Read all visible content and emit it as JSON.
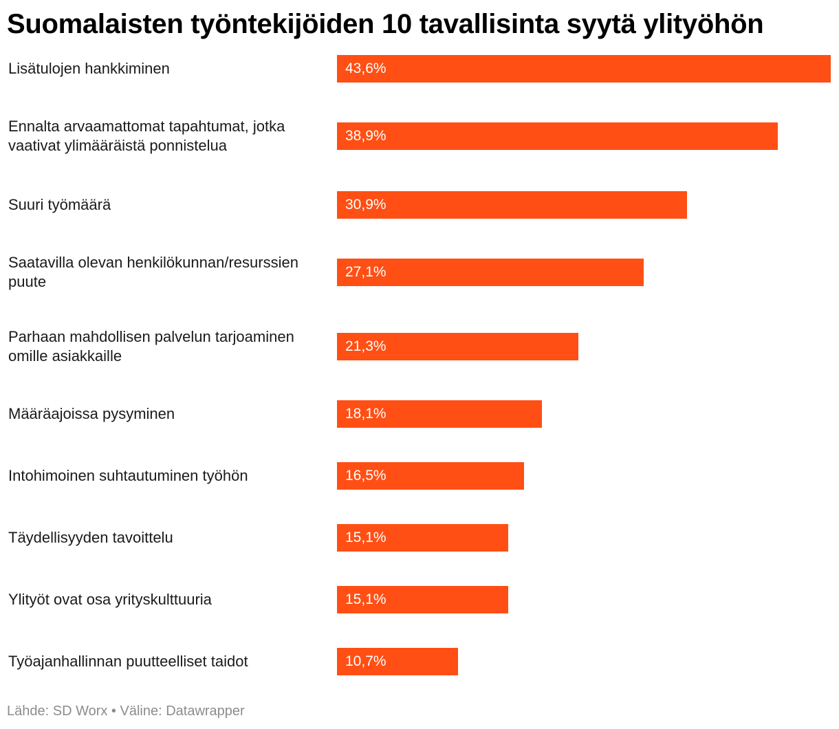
{
  "chart_data": {
    "type": "bar",
    "orientation": "horizontal",
    "title": "Suomalaisten työntekijöiden 10 tavallisinta syytä ylityöhön",
    "categories": [
      "Lisätulojen hankkiminen",
      "Ennalta arvaamattomat tapahtumat, jotka vaativat ylimääräistä ponnistelua",
      "Suuri työmäärä",
      "Saatavilla olevan henkilökunnan/resurssien puute",
      "Parhaan mahdollisen palvelun tarjoaminen omille asiakkaille",
      "Määräajoissa pysyminen",
      "Intohimoinen suhtautuminen työhön",
      "Täydellisyyden tavoittelu",
      "Ylityöt ovat osa yrityskulttuuria",
      "Työajanhallinnan puutteelliset taidot"
    ],
    "values": [
      43.6,
      38.9,
      30.9,
      27.1,
      21.3,
      18.1,
      16.5,
      15.1,
      15.1,
      10.7
    ],
    "value_labels": [
      "43,6%",
      "38,9%",
      "30,9%",
      "27,1%",
      "21,3%",
      "18,1%",
      "16,5%",
      "15,1%",
      "15,1%",
      "10,7%"
    ],
    "xlim": [
      0,
      43.6
    ],
    "grid": false,
    "legend": "none",
    "bar_color": "#ff4f14",
    "value_label_color": "#ffffff"
  },
  "footer": {
    "source": "Lähde: SD Worx • Väline: Datawrapper"
  }
}
